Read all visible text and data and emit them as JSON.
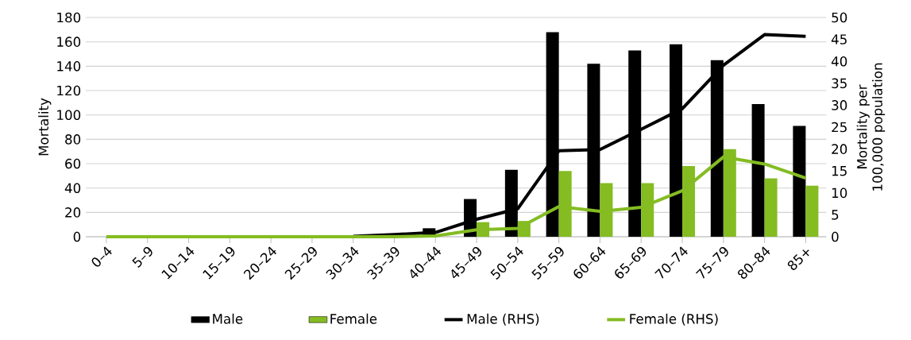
{
  "chart_data": {
    "type": "bar",
    "categories": [
      "0–4",
      "5–9",
      "10–14",
      "15–19",
      "20–24",
      "25–29",
      "30–34",
      "35–39",
      "40–44",
      "45–49",
      "50–54",
      "55–59",
      "60–64",
      "65–69",
      "70–74",
      "75–79",
      "80–84",
      "85+"
    ],
    "series": [
      {
        "name": "Male",
        "color": "#000000",
        "values": [
          0,
          0,
          0,
          0,
          0,
          0,
          0,
          null,
          7,
          31,
          55,
          168,
          142,
          153,
          158,
          145,
          109,
          91
        ]
      },
      {
        "name": "Female",
        "color": "#84bc22",
        "values": [
          0,
          0,
          0,
          0,
          0,
          0,
          0,
          0,
          0,
          12,
          13,
          54,
          44,
          44,
          58,
          72,
          48,
          42
        ]
      },
      {
        "name": "Male (RHS)",
        "type": "line",
        "axis": "y2",
        "color": "#000000",
        "values": [
          null,
          null,
          null,
          null,
          null,
          null,
          0.1,
          0.5,
          1,
          4,
          6.4,
          19.6,
          19.9,
          24.5,
          29.2,
          39.1,
          46.1,
          45.7
        ]
      },
      {
        "name": "Female (RHS)",
        "type": "line",
        "axis": "y2",
        "color": "#84bc22",
        "values": [
          0,
          0,
          0,
          0,
          0,
          0,
          0,
          0,
          0.2,
          1.6,
          1.9,
          6.9,
          5.8,
          6.7,
          10.5,
          18.2,
          16.6,
          13.4
        ]
      }
    ],
    "ylabel": "Mortality",
    "y2label": "Mortality per 100,000 population",
    "ylim": [
      0,
      180
    ],
    "yticks": [
      0,
      20,
      40,
      60,
      80,
      100,
      120,
      140,
      160,
      180
    ],
    "y2lim": [
      0,
      50
    ],
    "y2ticks": [
      0,
      5,
      10,
      15,
      20,
      25,
      30,
      35,
      40,
      45,
      50
    ],
    "grid": "y",
    "legend": "bottom"
  }
}
